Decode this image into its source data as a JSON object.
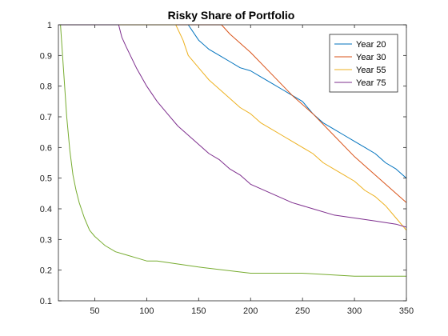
{
  "chart_data": {
    "type": "line",
    "title": "Risky Share of Portfolio",
    "xlabel": "",
    "ylabel": "",
    "xlim": [
      15,
      350
    ],
    "ylim": [
      0.1,
      1.0
    ],
    "x_ticks": [
      50,
      100,
      150,
      200,
      250,
      300,
      350
    ],
    "y_ticks": [
      0.1,
      0.2,
      0.3,
      0.4,
      0.5,
      0.6,
      0.7,
      0.8,
      0.9,
      1
    ],
    "grid": false,
    "legend_position": "top-right",
    "series": [
      {
        "name": "Year 20",
        "color": "#0072BD",
        "x": [
          15,
          140,
          150,
          160,
          170,
          180,
          190,
          200,
          210,
          220,
          230,
          240,
          250,
          260,
          270,
          280,
          290,
          300,
          310,
          320,
          330,
          340,
          350
        ],
        "y": [
          1.0,
          1.0,
          0.95,
          0.92,
          0.9,
          0.88,
          0.86,
          0.85,
          0.83,
          0.81,
          0.79,
          0.77,
          0.75,
          0.71,
          0.68,
          0.66,
          0.64,
          0.62,
          0.6,
          0.58,
          0.55,
          0.53,
          0.5
        ]
      },
      {
        "name": "Year 30",
        "color": "#D95319",
        "x": [
          15,
          172,
          180,
          200,
          220,
          240,
          260,
          280,
          300,
          320,
          340,
          350
        ],
        "y": [
          1.0,
          1.0,
          0.97,
          0.91,
          0.84,
          0.77,
          0.71,
          0.64,
          0.57,
          0.51,
          0.45,
          0.42
        ]
      },
      {
        "name": "Year 55",
        "color": "#EDB120",
        "x": [
          15,
          128,
          135,
          140,
          150,
          160,
          170,
          180,
          190,
          200,
          210,
          220,
          230,
          240,
          250,
          260,
          270,
          280,
          290,
          300,
          310,
          320,
          330,
          340,
          350
        ],
        "y": [
          1.0,
          1.0,
          0.95,
          0.9,
          0.86,
          0.82,
          0.79,
          0.76,
          0.73,
          0.71,
          0.68,
          0.66,
          0.64,
          0.62,
          0.6,
          0.58,
          0.55,
          0.53,
          0.51,
          0.49,
          0.46,
          0.44,
          0.41,
          0.37,
          0.33
        ]
      },
      {
        "name": "Year 75",
        "color": "#7E2F8E",
        "x": [
          15,
          73,
          76,
          80,
          90,
          100,
          110,
          120,
          130,
          140,
          150,
          160,
          170,
          180,
          190,
          200,
          220,
          240,
          260,
          280,
          300,
          320,
          340,
          350
        ],
        "y": [
          1.0,
          1.0,
          0.96,
          0.93,
          0.86,
          0.8,
          0.75,
          0.71,
          0.67,
          0.64,
          0.61,
          0.58,
          0.56,
          0.53,
          0.51,
          0.48,
          0.45,
          0.42,
          0.4,
          0.38,
          0.37,
          0.36,
          0.35,
          0.34
        ]
      },
      {
        "name": "",
        "color": "#77AC30",
        "x": [
          17,
          20,
          23,
          26,
          29,
          32,
          35,
          40,
          45,
          50,
          60,
          70,
          80,
          90,
          100,
          110,
          130,
          150,
          200,
          250,
          300,
          350
        ],
        "y": [
          1.0,
          0.85,
          0.7,
          0.59,
          0.51,
          0.46,
          0.42,
          0.37,
          0.33,
          0.31,
          0.28,
          0.26,
          0.25,
          0.24,
          0.23,
          0.23,
          0.22,
          0.21,
          0.19,
          0.19,
          0.18,
          0.18
        ]
      }
    ]
  }
}
